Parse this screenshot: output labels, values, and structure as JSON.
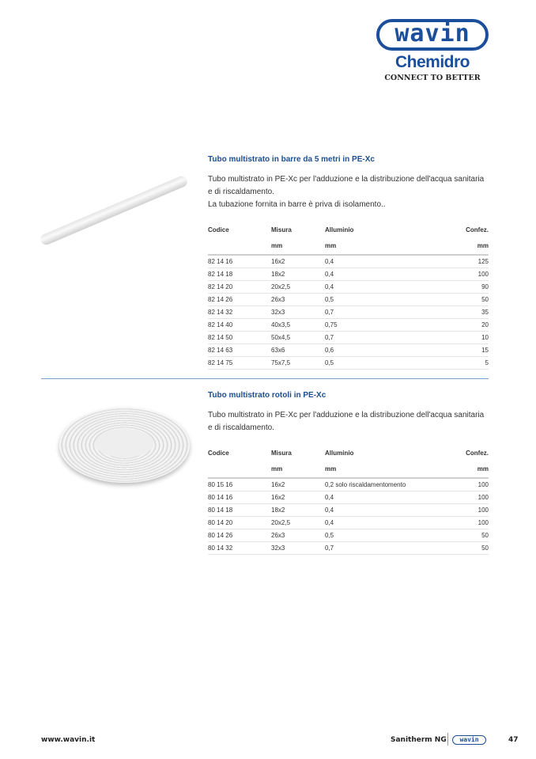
{
  "header": {
    "logo_text": "wavin",
    "brand": "Chemidro",
    "tagline": "CONNECT TO BETTER"
  },
  "sections": [
    {
      "title": "Tubo multistrato in barre da 5 metri in PE-Xc",
      "description": [
        "Tubo multistrato in PE-Xc per l'adduzione e la distribuzione dell'acqua sanitaria e di riscaldamento.",
        "La tubazione fornita in barre è priva di isolamento.."
      ],
      "columns": [
        "Codice",
        "Misura",
        "Alluminio",
        "Confez."
      ],
      "units": [
        "",
        "mm",
        "mm",
        "mm"
      ],
      "rows": [
        [
          "82 14 16",
          "16x2",
          "0,4",
          "125"
        ],
        [
          "82 14 18",
          "18x2",
          "0,4",
          "100"
        ],
        [
          "82 14 20",
          "20x2,5",
          "0,4",
          "90"
        ],
        [
          "82 14 26",
          "26x3",
          "0,5",
          "50"
        ],
        [
          "82 14 32",
          "32x3",
          "0,7",
          "35"
        ],
        [
          "82 14 40",
          "40x3,5",
          "0,75",
          "20"
        ],
        [
          "82 14 50",
          "50x4,5",
          "0,7",
          "10"
        ],
        [
          "82 14 63",
          "63x6",
          "0,6",
          "15"
        ],
        [
          "82 14 75",
          "75x7,5",
          "0,5",
          "5"
        ]
      ]
    },
    {
      "title": "Tubo multistrato rotoli in PE-Xc",
      "description": [
        "Tubo multistrato in PE-Xc per l'adduzione e la distribuzione dell'acqua sanitaria e di riscaldamento."
      ],
      "columns": [
        "Codice",
        "Misura",
        "Alluminio",
        "Confez."
      ],
      "units": [
        "",
        "mm",
        "mm",
        "mm"
      ],
      "rows": [
        [
          "80 15 16",
          "16x2",
          "0,2 solo riscaldamentomento",
          "100"
        ],
        [
          "80 14 16",
          "16x2",
          "0,4",
          "100"
        ],
        [
          "80 14 18",
          "18x2",
          "0,4",
          "100"
        ],
        [
          "80 14 20",
          "20x2,5",
          "0,4",
          "100"
        ],
        [
          "80 14 26",
          "26x3",
          "0,5",
          "50"
        ],
        [
          "80 14 32",
          "32x3",
          "0,7",
          "50"
        ]
      ]
    }
  ],
  "footer": {
    "website": "www.wavin.it",
    "product": "Sanitherm NG",
    "logo_text": "wavin",
    "page": "47"
  }
}
